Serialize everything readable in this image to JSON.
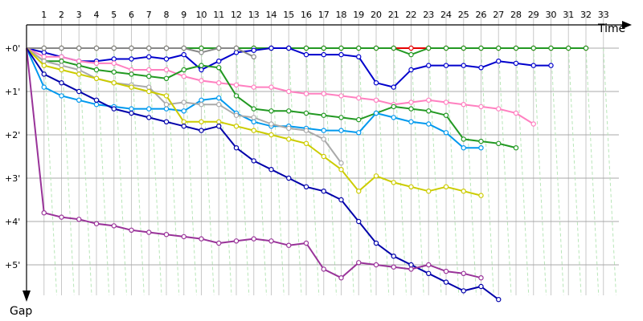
{
  "chart_data": {
    "type": "line",
    "xlabel": "Time",
    "ylabel": "Gap",
    "laps": [
      1,
      2,
      3,
      4,
      5,
      6,
      7,
      8,
      9,
      10,
      11,
      12,
      13,
      14,
      15,
      16,
      17,
      18,
      19,
      20,
      21,
      22,
      23,
      24,
      25,
      26,
      27,
      28,
      29,
      30,
      31,
      32,
      33
    ],
    "x_tick_labels": [
      "1",
      "2",
      "3",
      "4",
      "5",
      "6",
      "7",
      "8",
      "9",
      "10",
      "11",
      "12",
      "13",
      "14",
      "15",
      "16",
      "17",
      "18",
      "19",
      "20",
      "21",
      "22",
      "23",
      "24",
      "25",
      "26",
      "27",
      "28",
      "29",
      "30",
      "31",
      "32",
      "33"
    ],
    "y_ticks": [
      {
        "label": "+0'",
        "value": 0
      },
      {
        "label": "+1'",
        "value": 1
      },
      {
        "label": "+2'",
        "value": 2
      },
      {
        "label": "+3'",
        "value": 3
      },
      {
        "label": "+4'",
        "value": 4
      },
      {
        "label": "+5'",
        "value": 5
      }
    ],
    "ylim": [
      0,
      5.5
    ],
    "y_reversed": true,
    "grid": true,
    "series": [
      {
        "color": "#e60000",
        "values": [
          0,
          0,
          0,
          0,
          0,
          0,
          0,
          0,
          0,
          0,
          0,
          0,
          0,
          0,
          0,
          0,
          0,
          0,
          0,
          0,
          0,
          0,
          0,
          0,
          0,
          0,
          0,
          0,
          0,
          0,
          0,
          0,
          0
        ]
      },
      {
        "color": "#229922",
        "values": [
          0,
          0,
          0,
          0,
          0,
          0,
          0,
          0,
          0,
          0,
          0,
          0,
          0,
          0,
          0,
          0,
          0,
          0,
          0,
          0,
          0,
          0,
          0.15,
          0,
          0,
          0,
          0,
          0,
          0,
          0,
          0,
          0,
          0
        ]
      },
      {
        "color": "#0000cc",
        "values": [
          0,
          0.1,
          0.2,
          0.3,
          0.3,
          0.25,
          0.25,
          0.2,
          0.25,
          0.15,
          0.5,
          0.3,
          0.1,
          0.05,
          0,
          0,
          0.15,
          0.15,
          0.15,
          0.2,
          0.8,
          0.9,
          0.5,
          0.4,
          0.4,
          0.4,
          0.45,
          0.3,
          0.35,
          0.4,
          0.4
        ]
      },
      {
        "color": "#888888",
        "values": [
          0,
          0,
          0,
          0,
          0,
          0,
          0,
          0,
          0,
          0,
          0.1,
          0,
          0,
          0.2
        ]
      },
      {
        "color": "#ff80c0",
        "values": [
          0,
          0.2,
          0.2,
          0.3,
          0.35,
          0.35,
          0.5,
          0.5,
          0.5,
          0.65,
          0.75,
          0.8,
          0.85,
          0.9,
          0.9,
          1.0,
          1.05,
          1.05,
          1.1,
          1.15,
          1.2,
          1.3,
          1.25,
          1.2,
          1.25,
          1.3,
          1.35,
          1.4,
          1.5,
          1.75
        ]
      },
      {
        "color": "#229922",
        "values": [
          0,
          0.3,
          0.3,
          0.4,
          0.5,
          0.55,
          0.6,
          0.65,
          0.7,
          0.5,
          0.4,
          0.45,
          1.1,
          1.4,
          1.45,
          1.45,
          1.5,
          1.55,
          1.6,
          1.65,
          1.5,
          1.35,
          1.4,
          1.45,
          1.55,
          2.1,
          2.15,
          2.2,
          2.3
        ]
      },
      {
        "color": "#0099ee",
        "values": [
          0,
          0.9,
          1.1,
          1.2,
          1.3,
          1.35,
          1.4,
          1.4,
          1.4,
          1.45,
          1.2,
          1.15,
          1.5,
          1.7,
          1.8,
          1.8,
          1.85,
          1.9,
          1.9,
          1.95,
          1.5,
          1.6,
          1.7,
          1.75,
          1.95,
          2.3,
          2.3
        ]
      },
      {
        "color": "#aaaaaa",
        "values": [
          0,
          0.3,
          0.4,
          0.5,
          0.7,
          0.8,
          0.85,
          0.9,
          1.3,
          1.25,
          1.3,
          1.3,
          1.55,
          1.6,
          1.75,
          1.85,
          1.9,
          2.1,
          2.65
        ]
      },
      {
        "color": "#cccc00",
        "values": [
          0,
          0.4,
          0.5,
          0.6,
          0.7,
          0.8,
          0.9,
          1.0,
          1.1,
          1.7,
          1.7,
          1.7,
          1.8,
          1.9,
          2.0,
          2.1,
          2.2,
          2.5,
          2.8,
          3.3,
          2.95,
          3.1,
          3.2,
          3.3,
          3.2,
          3.3,
          3.4
        ]
      },
      {
        "color": "#0000aa",
        "values": [
          0,
          0.6,
          0.8,
          1.0,
          1.2,
          1.4,
          1.5,
          1.6,
          1.7,
          1.8,
          1.9,
          1.8,
          2.3,
          2.6,
          2.8,
          3.0,
          3.2,
          3.3,
          3.5,
          4.0,
          4.5,
          4.8,
          5.0,
          5.2,
          5.4,
          5.6,
          5.5,
          5.8
        ]
      },
      {
        "color": "#993399",
        "values": [
          0,
          3.8,
          3.9,
          3.95,
          4.05,
          4.1,
          4.2,
          4.25,
          4.3,
          4.35,
          4.4,
          4.5,
          4.45,
          4.4,
          4.45,
          4.55,
          4.5,
          5.1,
          5.3,
          4.95,
          5.0,
          5.05,
          5.1,
          5.0,
          5.15,
          5.2,
          5.3
        ]
      }
    ]
  }
}
